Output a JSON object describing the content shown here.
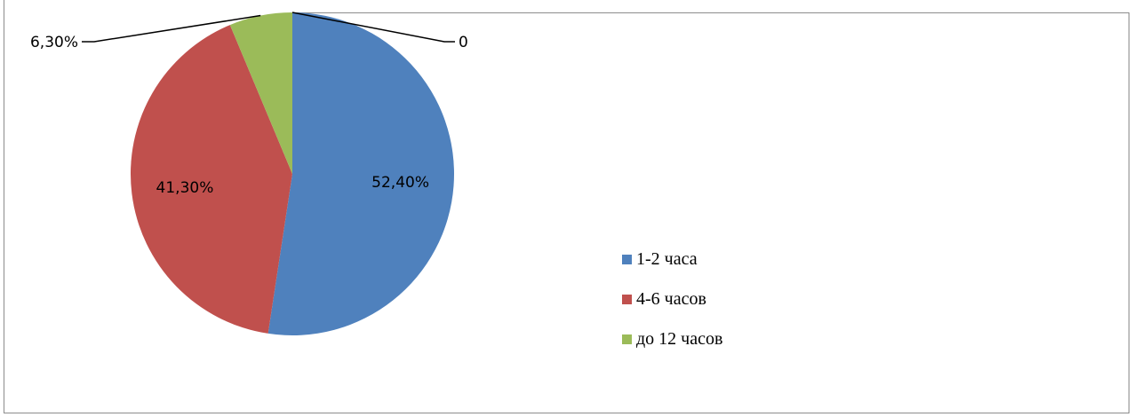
{
  "chart_data": {
    "type": "pie",
    "categories": [
      "1-2 часа",
      "4-6 часов",
      "до 12 часов",
      ""
    ],
    "values": [
      52.4,
      41.3,
      6.3,
      0
    ],
    "data_labels": [
      "52,40%",
      "41,30%",
      "6,30%",
      "0"
    ],
    "colors": [
      "#4f81bd",
      "#c0504d",
      "#9bbb59",
      "#8064a2"
    ],
    "legend": {
      "position": "right",
      "entries": [
        "1-2 часа",
        "4-6 часов",
        "до 12 часов"
      ]
    }
  }
}
